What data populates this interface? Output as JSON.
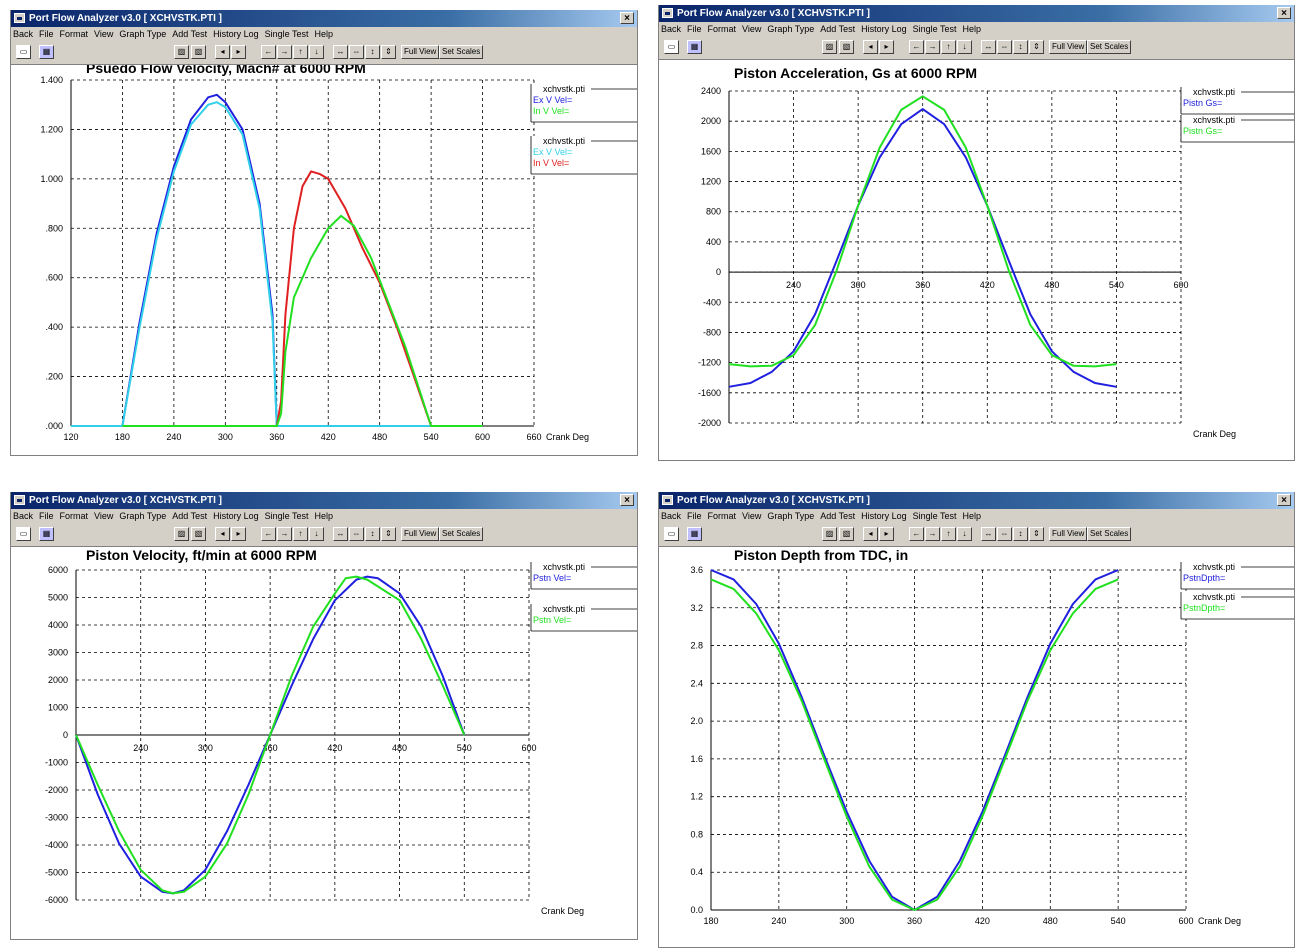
{
  "window_title": "Port Flow Analyzer v3.0  [ XCHVSTK.PTI ]",
  "close_glyph": "×",
  "menu": [
    "Back",
    "File",
    "Format",
    "View",
    "Graph Type",
    "Add Test",
    "History Log",
    "Single Test",
    "Help"
  ],
  "toolbar": {
    "full_view": "Full View",
    "set_scales": "Set Scales",
    "icons": [
      "print-icon",
      "color-icon",
      "graph-type-icon",
      "graph-type-2-icon",
      "step-left-icon",
      "step-right-icon",
      "pan-left-icon",
      "pan-right-icon",
      "pan-up-icon",
      "pan-down-icon",
      "zoom-x-out-icon",
      "zoom-x-in-icon",
      "zoom-y-out-icon",
      "zoom-y-in-icon"
    ]
  },
  "colors": {
    "blue": "#2020e0",
    "green": "#20e020",
    "red": "#e02020",
    "cyan": "#30d0e8",
    "grid": "#000000"
  },
  "chart_data": [
    {
      "type": "line",
      "title": "Psuedo Flow Velocity, Mach# at 6000 RPM",
      "xlabel": "Crank Deg",
      "x_ticks": [
        "120",
        "180",
        "240",
        "300",
        "360",
        "420",
        "480",
        "540",
        "600",
        "660"
      ],
      "y_ticks": [
        ".000",
        ".200",
        ".400",
        ".600",
        ".800",
        "1.000",
        "1.200",
        "1.400"
      ],
      "xlim": [
        120,
        660
      ],
      "ylim": [
        0,
        1.4
      ],
      "legend": [
        {
          "file": "xchvstk.pti",
          "entries": [
            {
              "label": "Ex V Vel=",
              "color": "blue"
            },
            {
              "label": "In V Vel=",
              "color": "green"
            }
          ]
        },
        {
          "file": "xchvstk.pti",
          "entries": [
            {
              "label": "Ex V Vel=",
              "color": "cyan"
            },
            {
              "label": "In V Vel=",
              "color": "red"
            }
          ]
        }
      ],
      "series": [
        {
          "color": "blue",
          "values": [
            [
              120,
              0
            ],
            [
              180,
              0
            ],
            [
              200,
              0.42
            ],
            [
              220,
              0.78
            ],
            [
              240,
              1.05
            ],
            [
              260,
              1.24
            ],
            [
              280,
              1.33
            ],
            [
              290,
              1.34
            ],
            [
              300,
              1.31
            ],
            [
              320,
              1.2
            ],
            [
              340,
              0.9
            ],
            [
              355,
              0.45
            ],
            [
              360,
              0
            ],
            [
              400,
              0
            ],
            [
              540,
              0
            ],
            [
              600,
              0
            ]
          ]
        },
        {
          "color": "cyan",
          "values": [
            [
              120,
              0
            ],
            [
              180,
              0
            ],
            [
              200,
              0.4
            ],
            [
              220,
              0.76
            ],
            [
              240,
              1.03
            ],
            [
              260,
              1.22
            ],
            [
              280,
              1.3
            ],
            [
              290,
              1.31
            ],
            [
              300,
              1.29
            ],
            [
              320,
              1.18
            ],
            [
              340,
              0.88
            ],
            [
              355,
              0.42
            ],
            [
              360,
              0
            ],
            [
              400,
              0
            ],
            [
              540,
              0
            ],
            [
              600,
              0
            ]
          ]
        },
        {
          "color": "red",
          "values": [
            [
              300,
              0
            ],
            [
              360,
              0
            ],
            [
              365,
              0.1
            ],
            [
              370,
              0.45
            ],
            [
              380,
              0.8
            ],
            [
              390,
              0.97
            ],
            [
              400,
              1.03
            ],
            [
              410,
              1.02
            ],
            [
              420,
              1.0
            ],
            [
              440,
              0.88
            ],
            [
              460,
              0.72
            ],
            [
              480,
              0.58
            ],
            [
              500,
              0.4
            ],
            [
              520,
              0.2
            ],
            [
              540,
              0
            ],
            [
              580,
              0
            ]
          ]
        },
        {
          "color": "green",
          "values": [
            [
              180,
              0
            ],
            [
              360,
              0
            ],
            [
              365,
              0.05
            ],
            [
              370,
              0.3
            ],
            [
              380,
              0.52
            ],
            [
              400,
              0.68
            ],
            [
              420,
              0.8
            ],
            [
              435,
              0.85
            ],
            [
              450,
              0.81
            ],
            [
              470,
              0.68
            ],
            [
              490,
              0.5
            ],
            [
              510,
              0.32
            ],
            [
              525,
              0.16
            ],
            [
              540,
              0
            ],
            [
              600,
              0
            ]
          ]
        }
      ]
    },
    {
      "type": "line",
      "title": "Piston Acceleration, Gs at 6000 RPM",
      "xlabel": "Crank Deg",
      "x_ticks": [
        "240",
        "300",
        "360",
        "420",
        "480",
        "540",
        "600"
      ],
      "y_ticks": [
        "-2000",
        "-1600",
        "-1200",
        "-800",
        "-400",
        "0",
        "400",
        "800",
        "1200",
        "1600",
        "2000",
        "2400"
      ],
      "xlim": [
        180,
        600
      ],
      "ylim": [
        -2000,
        2400
      ],
      "legend": [
        {
          "file": "xchvstk.pti",
          "entries": [
            {
              "label": "Pistn Gs=",
              "color": "blue"
            }
          ]
        },
        {
          "file": "xchvstk.pti",
          "entries": [
            {
              "label": "Pistn Gs=",
              "color": "green"
            }
          ]
        }
      ],
      "series": [
        {
          "color": "blue",
          "values": [
            [
              180,
              -1520
            ],
            [
              200,
              -1470
            ],
            [
              220,
              -1320
            ],
            [
              240,
              -1050
            ],
            [
              260,
              -560
            ],
            [
              280,
              150
            ],
            [
              300,
              880
            ],
            [
              320,
              1520
            ],
            [
              340,
              1960
            ],
            [
              360,
              2160
            ],
            [
              380,
              1960
            ],
            [
              400,
              1520
            ],
            [
              420,
              880
            ],
            [
              440,
              150
            ],
            [
              460,
              -560
            ],
            [
              480,
              -1050
            ],
            [
              500,
              -1320
            ],
            [
              520,
              -1470
            ],
            [
              540,
              -1520
            ]
          ]
        },
        {
          "color": "green",
          "values": [
            [
              180,
              -1220
            ],
            [
              200,
              -1250
            ],
            [
              220,
              -1240
            ],
            [
              240,
              -1100
            ],
            [
              260,
              -700
            ],
            [
              280,
              20
            ],
            [
              300,
              880
            ],
            [
              320,
              1650
            ],
            [
              340,
              2150
            ],
            [
              360,
              2330
            ],
            [
              380,
              2150
            ],
            [
              400,
              1650
            ],
            [
              420,
              880
            ],
            [
              440,
              20
            ],
            [
              460,
              -700
            ],
            [
              480,
              -1100
            ],
            [
              500,
              -1240
            ],
            [
              520,
              -1250
            ],
            [
              540,
              -1220
            ]
          ]
        }
      ]
    },
    {
      "type": "line",
      "title": "Piston Velocity, ft/min at 6000 RPM",
      "xlabel": "Crank Deg",
      "x_ticks": [
        "240",
        "300",
        "360",
        "420",
        "480",
        "540",
        "600"
      ],
      "y_ticks": [
        "-6000",
        "-5000",
        "-4000",
        "-3000",
        "-2000",
        "-1000",
        "0",
        "1000",
        "2000",
        "3000",
        "4000",
        "5000",
        "6000"
      ],
      "xlim": [
        180,
        600
      ],
      "ylim": [
        -6000,
        6000
      ],
      "legend": [
        {
          "file": "xchvstk.pti",
          "entries": [
            {
              "label": "Pstn Vel=",
              "color": "blue"
            }
          ]
        },
        {
          "file": "xchvstk.pti",
          "entries": [
            {
              "label": "Pstn Vel=",
              "color": "green"
            }
          ]
        }
      ],
      "series": [
        {
          "color": "blue",
          "values": [
            [
              180,
              0
            ],
            [
              200,
              -2150
            ],
            [
              220,
              -3950
            ],
            [
              240,
              -5150
            ],
            [
              260,
              -5700
            ],
            [
              270,
              -5760
            ],
            [
              280,
              -5650
            ],
            [
              300,
              -4900
            ],
            [
              320,
              -3500
            ],
            [
              340,
              -1800
            ],
            [
              360,
              0
            ],
            [
              380,
              1800
            ],
            [
              400,
              3500
            ],
            [
              420,
              4900
            ],
            [
              440,
              5650
            ],
            [
              450,
              5760
            ],
            [
              460,
              5700
            ],
            [
              480,
              5150
            ],
            [
              500,
              3950
            ],
            [
              520,
              2150
            ],
            [
              540,
              0
            ]
          ]
        },
        {
          "color": "green",
          "values": [
            [
              180,
              0
            ],
            [
              200,
              -1800
            ],
            [
              220,
              -3500
            ],
            [
              240,
              -4900
            ],
            [
              260,
              -5650
            ],
            [
              270,
              -5760
            ],
            [
              280,
              -5700
            ],
            [
              300,
              -5150
            ],
            [
              320,
              -3950
            ],
            [
              340,
              -2150
            ],
            [
              360,
              0
            ],
            [
              380,
              2150
            ],
            [
              400,
              3950
            ],
            [
              420,
              5150
            ],
            [
              430,
              5700
            ],
            [
              440,
              5760
            ],
            [
              450,
              5650
            ],
            [
              480,
              4900
            ],
            [
              500,
              3500
            ],
            [
              520,
              1800
            ],
            [
              540,
              0
            ]
          ]
        }
      ]
    },
    {
      "type": "line",
      "title": "Piston Depth from TDC, in",
      "xlabel": "Crank Deg",
      "x_ticks": [
        "180",
        "240",
        "300",
        "360",
        "420",
        "480",
        "540",
        "600"
      ],
      "y_ticks": [
        "0.0",
        "0.4",
        "0.8",
        "1.2",
        "1.6",
        "2.0",
        "2.4",
        "2.8",
        "3.2",
        "3.6"
      ],
      "xlim": [
        180,
        600
      ],
      "ylim": [
        0,
        3.6
      ],
      "legend": [
        {
          "file": "xchvstk.pti",
          "entries": [
            {
              "label": "PstnDpth=",
              "color": "blue"
            }
          ]
        },
        {
          "file": "xchvstk.pti",
          "entries": [
            {
              "label": "PstnDpth=",
              "color": "green"
            }
          ]
        }
      ],
      "series": [
        {
          "color": "blue",
          "values": [
            [
              180,
              3.6
            ],
            [
              200,
              3.5
            ],
            [
              220,
              3.24
            ],
            [
              240,
              2.82
            ],
            [
              260,
              2.26
            ],
            [
              280,
              1.64
            ],
            [
              300,
              1.04
            ],
            [
              320,
              0.52
            ],
            [
              340,
              0.14
            ],
            [
              360,
              0
            ],
            [
              380,
              0.14
            ],
            [
              400,
              0.52
            ],
            [
              420,
              1.04
            ],
            [
              440,
              1.64
            ],
            [
              460,
              2.26
            ],
            [
              480,
              2.82
            ],
            [
              500,
              3.24
            ],
            [
              520,
              3.5
            ],
            [
              540,
              3.6
            ]
          ]
        },
        {
          "color": "green",
          "values": [
            [
              180,
              3.5
            ],
            [
              200,
              3.4
            ],
            [
              220,
              3.14
            ],
            [
              240,
              2.75
            ],
            [
              260,
              2.22
            ],
            [
              280,
              1.6
            ],
            [
              300,
              0.99
            ],
            [
              320,
              0.46
            ],
            [
              340,
              0.11
            ],
            [
              360,
              0
            ],
            [
              380,
              0.11
            ],
            [
              400,
              0.46
            ],
            [
              420,
              0.99
            ],
            [
              440,
              1.6
            ],
            [
              460,
              2.22
            ],
            [
              480,
              2.75
            ],
            [
              500,
              3.14
            ],
            [
              520,
              3.4
            ],
            [
              540,
              3.5
            ]
          ]
        }
      ]
    }
  ]
}
